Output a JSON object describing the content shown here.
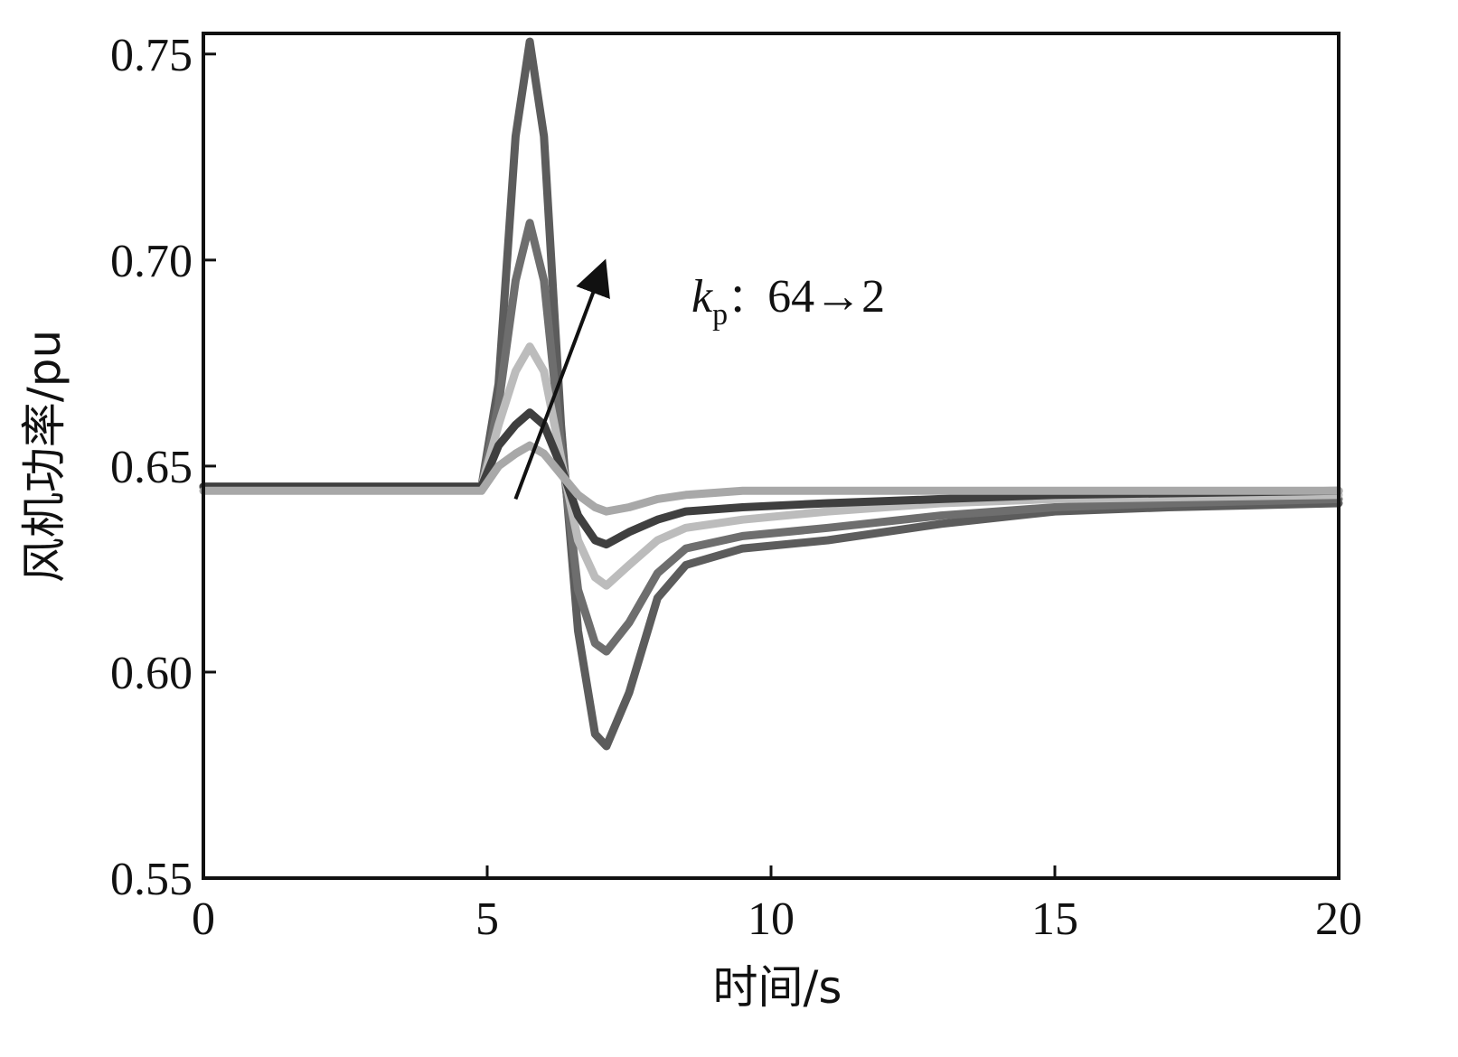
{
  "chart_data": {
    "type": "line",
    "title": "",
    "xlabel": "时间/s",
    "ylabel": "风机功率/pu",
    "xlim": [
      0,
      20
    ],
    "ylim": [
      0.55,
      0.755
    ],
    "xticks": [
      {
        "value": 0,
        "label": "0"
      },
      {
        "value": 5,
        "label": "5"
      },
      {
        "value": 10,
        "label": "10"
      },
      {
        "value": 15,
        "label": "15"
      },
      {
        "value": 20,
        "label": "20"
      }
    ],
    "yticks": [
      {
        "value": 0.55,
        "label": "0.55"
      },
      {
        "value": 0.6,
        "label": "0.60"
      },
      {
        "value": 0.65,
        "label": "0.65"
      },
      {
        "value": 0.7,
        "label": "0.70"
      },
      {
        "value": 0.75,
        "label": "0.75"
      }
    ],
    "grid": false,
    "annotation": {
      "var_main": "k",
      "var_sub": "p",
      "sep": "：",
      "range_text": "64→2",
      "arrow_from": [
        5.5,
        0.642
      ],
      "arrow_to": [
        7.0,
        0.697
      ]
    },
    "series": [
      {
        "color": "#5c5c5c",
        "points": [
          [
            0,
            0.645
          ],
          [
            4.9,
            0.645
          ],
          [
            5.2,
            0.67
          ],
          [
            5.5,
            0.73
          ],
          [
            5.75,
            0.753
          ],
          [
            6.0,
            0.73
          ],
          [
            6.3,
            0.66
          ],
          [
            6.6,
            0.61
          ],
          [
            6.9,
            0.585
          ],
          [
            7.1,
            0.582
          ],
          [
            7.5,
            0.595
          ],
          [
            8.0,
            0.618
          ],
          [
            8.5,
            0.626
          ],
          [
            9.5,
            0.63
          ],
          [
            11,
            0.632
          ],
          [
            13,
            0.636
          ],
          [
            15,
            0.639
          ],
          [
            17,
            0.64
          ],
          [
            20,
            0.641
          ]
        ]
      },
      {
        "color": "#6e6e6e",
        "points": [
          [
            0,
            0.645
          ],
          [
            4.9,
            0.645
          ],
          [
            5.2,
            0.665
          ],
          [
            5.5,
            0.695
          ],
          [
            5.75,
            0.709
          ],
          [
            6.0,
            0.695
          ],
          [
            6.3,
            0.655
          ],
          [
            6.6,
            0.62
          ],
          [
            6.9,
            0.607
          ],
          [
            7.1,
            0.605
          ],
          [
            7.5,
            0.612
          ],
          [
            8.0,
            0.624
          ],
          [
            8.5,
            0.63
          ],
          [
            9.5,
            0.633
          ],
          [
            11,
            0.635
          ],
          [
            13,
            0.638
          ],
          [
            15,
            0.64
          ],
          [
            17,
            0.641
          ],
          [
            20,
            0.642
          ]
        ]
      },
      {
        "color": "#bcbcbc",
        "points": [
          [
            0,
            0.645
          ],
          [
            4.9,
            0.645
          ],
          [
            5.2,
            0.66
          ],
          [
            5.5,
            0.673
          ],
          [
            5.75,
            0.679
          ],
          [
            6.0,
            0.673
          ],
          [
            6.3,
            0.652
          ],
          [
            6.6,
            0.632
          ],
          [
            6.9,
            0.623
          ],
          [
            7.1,
            0.621
          ],
          [
            7.5,
            0.626
          ],
          [
            8.0,
            0.632
          ],
          [
            8.5,
            0.635
          ],
          [
            9.5,
            0.637
          ],
          [
            11,
            0.639
          ],
          [
            13,
            0.641
          ],
          [
            15,
            0.642
          ],
          [
            20,
            0.643
          ]
        ]
      },
      {
        "color": "#3f3f3f",
        "points": [
          [
            0,
            0.645
          ],
          [
            4.9,
            0.645
          ],
          [
            5.2,
            0.655
          ],
          [
            5.5,
            0.66
          ],
          [
            5.75,
            0.663
          ],
          [
            6.0,
            0.66
          ],
          [
            6.3,
            0.65
          ],
          [
            6.6,
            0.638
          ],
          [
            6.9,
            0.632
          ],
          [
            7.1,
            0.631
          ],
          [
            7.5,
            0.634
          ],
          [
            8.0,
            0.637
          ],
          [
            8.5,
            0.639
          ],
          [
            9.5,
            0.64
          ],
          [
            11,
            0.641
          ],
          [
            13,
            0.642
          ],
          [
            15,
            0.643
          ],
          [
            20,
            0.644
          ]
        ]
      },
      {
        "color": "#a8a8a8",
        "points": [
          [
            0,
            0.644
          ],
          [
            4.9,
            0.644
          ],
          [
            5.2,
            0.65
          ],
          [
            5.5,
            0.653
          ],
          [
            5.75,
            0.655
          ],
          [
            6.0,
            0.653
          ],
          [
            6.3,
            0.648
          ],
          [
            6.6,
            0.643
          ],
          [
            6.9,
            0.64
          ],
          [
            7.1,
            0.639
          ],
          [
            7.5,
            0.64
          ],
          [
            8.0,
            0.642
          ],
          [
            8.5,
            0.643
          ],
          [
            9.5,
            0.644
          ],
          [
            11,
            0.644
          ],
          [
            15,
            0.644
          ],
          [
            20,
            0.644
          ]
        ]
      }
    ]
  }
}
